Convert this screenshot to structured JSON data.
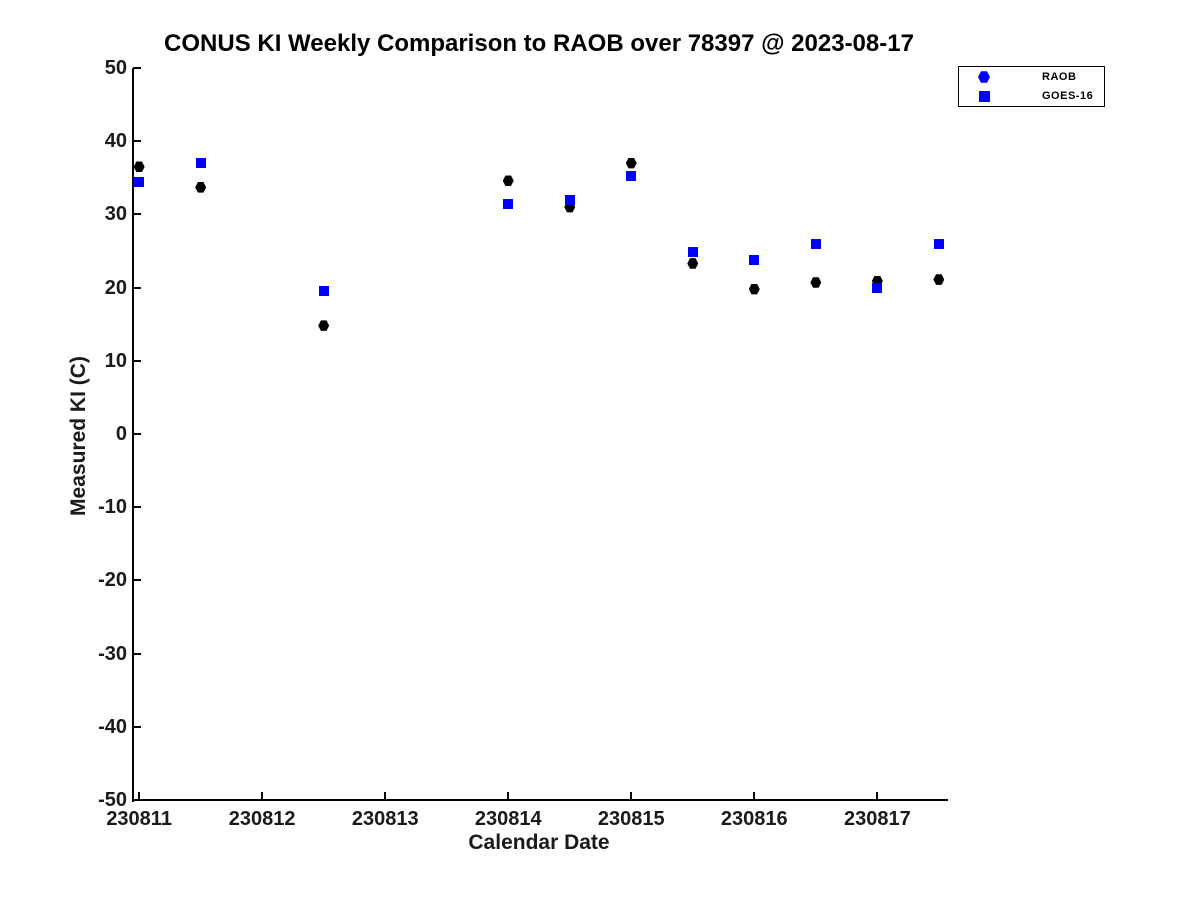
{
  "title": "CONUS KI Weekly Comparison to RAOB over 78397 @ 2023-08-17",
  "colors": {
    "raob_marker": "#000000",
    "goes_marker": "#0000ff",
    "legend_marker": "#0000ff",
    "axis": "#000000",
    "background": "#ffffff"
  },
  "legend": {
    "items": [
      {
        "label": "RAOB",
        "marker": "hexagon",
        "color": "#0000ff"
      },
      {
        "label": "GOES-16",
        "marker": "square",
        "color": "#0000ff"
      }
    ]
  },
  "chart_data": {
    "type": "scatter",
    "title": "CONUS KI Weekly Comparison to RAOB over 78397 @ 2023-08-17",
    "xlabel": "Calendar Date",
    "ylabel": "Measured KI (C)",
    "xlim": [
      230810.95,
      230817.55
    ],
    "ylim": [
      -50,
      50
    ],
    "grid": false,
    "legend_position": "outside-top-right",
    "x_ticks": [
      230811,
      230812,
      230813,
      230814,
      230815,
      230816,
      230817
    ],
    "x_tick_labels": [
      "230811",
      "230812",
      "230813",
      "230814",
      "230815",
      "230816",
      "230817"
    ],
    "y_ticks": [
      50,
      40,
      30,
      20,
      10,
      0,
      -10,
      -20,
      -30,
      -40,
      -50
    ],
    "y_tick_labels": [
      "50",
      "40",
      "30",
      "20",
      "10",
      "0",
      "-10",
      "-20",
      "-30",
      "-40",
      "-50"
    ],
    "x_shared": [
      230811,
      230811.5,
      230812.5,
      230814,
      230814.5,
      230815,
      230815.5,
      230816,
      230816.5,
      230817,
      230817.5
    ],
    "series": [
      {
        "name": "RAOB",
        "marker": "hexagon",
        "color": "#000000",
        "x": [
          230811,
          230811.5,
          230812.5,
          230814,
          230814.5,
          230815,
          230815.5,
          230816,
          230816.5,
          230817,
          230817.5
        ],
        "y": [
          36.5,
          33.7,
          14.8,
          34.6,
          31.0,
          37.0,
          23.3,
          19.8,
          20.7,
          20.9,
          21.1
        ]
      },
      {
        "name": "GOES-16",
        "marker": "square",
        "color": "#0000ff",
        "x": [
          230811,
          230811.5,
          230812.5,
          230814,
          230814.5,
          230815,
          230815.5,
          230816,
          230816.5,
          230817,
          230817.5
        ],
        "y": [
          34.4,
          37.0,
          19.5,
          31.4,
          32.0,
          35.3,
          24.9,
          23.8,
          26.0,
          19.9,
          26.0
        ]
      }
    ]
  }
}
